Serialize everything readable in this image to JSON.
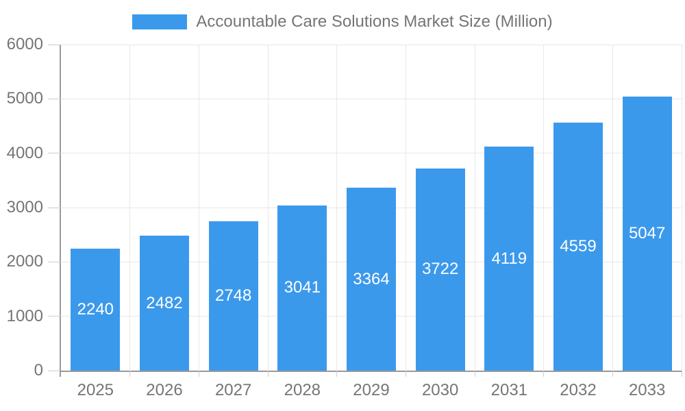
{
  "chart_data": {
    "type": "bar",
    "title": "Accountable Care Solutions Market Size (Million)",
    "legend_entries": [
      "Accountable Care Solutions Market Size (Million)"
    ],
    "legend_position": "top-center",
    "categories": [
      "2025",
      "2026",
      "2027",
      "2028",
      "2029",
      "2030",
      "2031",
      "2032",
      "2033"
    ],
    "series": [
      {
        "name": "Accountable Care Solutions Market Size (Million)",
        "values": [
          2240,
          2482,
          2748,
          3041,
          3364,
          3722,
          4119,
          4559,
          5047
        ]
      }
    ],
    "bar_value_labels_visible": true,
    "xlabel": "",
    "ylabel": "",
    "ylim": [
      0,
      6000
    ],
    "y_ticks": [
      0,
      1000,
      2000,
      3000,
      4000,
      5000,
      6000
    ],
    "grid": true,
    "colors": {
      "bar": "#3B99EC",
      "gridline": "#E7E7E7",
      "tick": "#CCCCCC",
      "axis_line": "#999999",
      "tick_label": "#757575",
      "title_text": "#757575",
      "bar_label": "#FFFFFF",
      "background": "#FFFFFF"
    }
  }
}
